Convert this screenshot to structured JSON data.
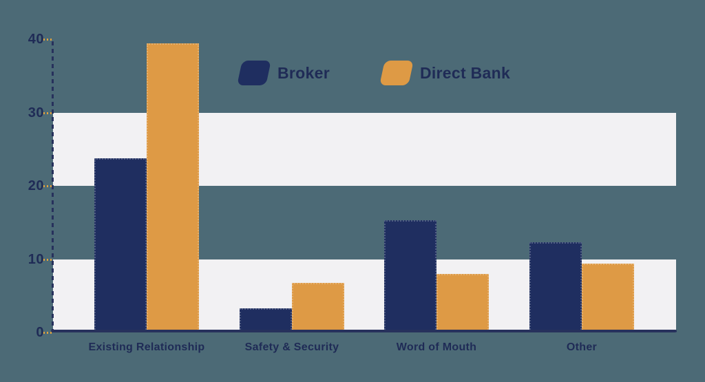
{
  "chart": {
    "background_color": "#4C6A76",
    "band_color": "#F2F1F3",
    "axis_color": "#27315C",
    "tick_dash_color": "#E2A33E",
    "text_color": "#1F2B56"
  },
  "chart_data": {
    "type": "bar",
    "title": "",
    "xlabel": "",
    "ylabel": "",
    "categories": [
      "Existing Relationship",
      "Safety & Security",
      "Word of Mouth",
      "Other"
    ],
    "series": [
      {
        "name": "Broker",
        "color": "#1F2E60",
        "values": [
          23.8,
          3.3,
          15.3,
          12.3
        ]
      },
      {
        "name": "Direct Bank",
        "color": "#DE9A45",
        "values": [
          39.4,
          6.8,
          8.0,
          9.4
        ]
      }
    ],
    "ylim": [
      0,
      40
    ],
    "y_ticks": [
      0,
      10,
      20,
      30,
      40
    ],
    "bands": [
      [
        0,
        10
      ],
      [
        20,
        30
      ]
    ],
    "grid": "alternating-horizontal-bands",
    "legend_position": "top-center",
    "legend": [
      "Broker",
      "Direct Bank"
    ]
  }
}
